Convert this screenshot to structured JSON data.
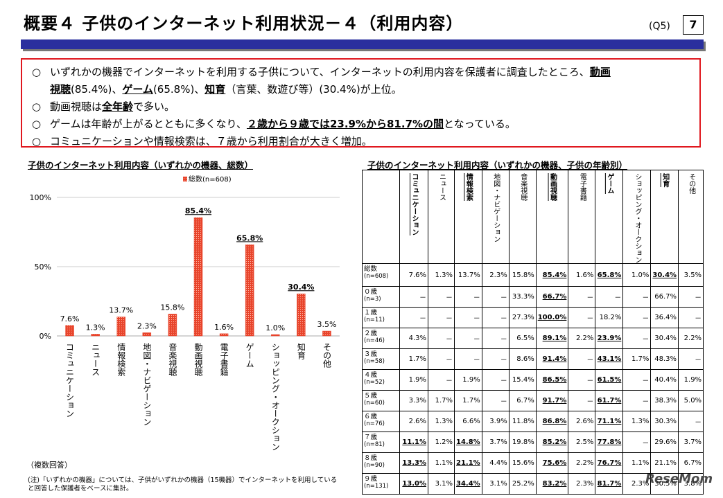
{
  "header": {
    "title": "概要４ 子供のインターネット利用状況－４（利用内容）",
    "question": "(Q5)",
    "page": "7"
  },
  "summary": {
    "bullet": "○",
    "l1a": "いずれかの機器でインターネットを利用する子供について、インターネットの利用内容を保護者に調査したところ、",
    "l1b": "動画",
    "l2a": "視聴",
    "l2b": "(85.4%)、",
    "l2c": "ゲーム",
    "l2d": "(65.8%)、",
    "l2e": "知育",
    "l2f": "（言葉、数遊び等）(30.4%)が上位。",
    "l3a": "動画視聴は",
    "l3b": "全年齢",
    "l3c": "で多い。",
    "l4a": "ゲームは年齢が上がるとともに多くなり、",
    "l4b": "２歳から９歳では23.9%から81.7%の間",
    "l4c": "となっている。",
    "l5": "コミュニケーションや情報検索は、７歳から利用割合が大きく増加。"
  },
  "left_title": "子供のインターネット利用内容（いずれかの機器、総数）",
  "right_title": "子供のインターネット利用内容（いずれかの機器、子供の年齢別）",
  "multi_note": "（複数回答）",
  "footnote": {
    "l1": "(注)「いずれかの機器」については、子供がいずれかの機器（15機器）でインターネットを利用している",
    "l2": "と回答した保護者をベースに集計。"
  },
  "logo": "ReseMom",
  "chart_data": {
    "type": "bar",
    "title": "子供のインターネット利用内容（いずれかの機器、総数）",
    "legend": "総数(n=608)",
    "legend_position": "top-center",
    "categories": [
      "コミュニケーション",
      "ニュース",
      "情報検索",
      "地図・ナビゲーション",
      "音楽視聴",
      "動画視聴",
      "電子書籍",
      "ゲーム",
      "ショッピング・オークション",
      "知育",
      "その他"
    ],
    "values": [
      7.6,
      1.3,
      13.7,
      2.3,
      15.8,
      85.4,
      1.6,
      65.8,
      1.0,
      30.4,
      3.5
    ],
    "labels": [
      "7.6%",
      "1.3%",
      "13.7%",
      "2.3%",
      "15.8%",
      "85.4%",
      "1.6%",
      "65.8%",
      "1.0%",
      "30.4%",
      "3.5%"
    ],
    "highlighted": [
      5,
      7,
      9
    ],
    "yticks": [
      "100%",
      "50%",
      "0%"
    ],
    "ylim": [
      0,
      100
    ],
    "color": "#e8452c"
  },
  "table": {
    "columns": [
      "コミュニケーション",
      "ニュース",
      "情報検索",
      "地図・ナビゲーション",
      "音楽視聴",
      "動画視聴",
      "電子書籍",
      "ゲーム",
      "ショッピング・オークション",
      "知育",
      "その他"
    ],
    "rows": [
      {
        "label": "総数",
        "n": "(n=608)",
        "cells": [
          "7.6%",
          "1.3%",
          "13.7%",
          "2.3%",
          "15.8%",
          "85.4%",
          "1.6%",
          "65.8%",
          "1.0%",
          "30.4%",
          "3.5%"
        ],
        "bold": [
          5,
          7,
          9
        ]
      },
      {
        "label": "０歳",
        "n": "(n=3)",
        "cells": [
          "－",
          "－",
          "－",
          "－",
          "33.3%",
          "66.7%",
          "－",
          "－",
          "－",
          "66.7%",
          "－"
        ],
        "bold": [
          5
        ]
      },
      {
        "label": "１歳",
        "n": "(n=11)",
        "cells": [
          "－",
          "－",
          "－",
          "－",
          "27.3%",
          "100.0%",
          "－",
          "18.2%",
          "－",
          "36.4%",
          "－"
        ],
        "bold": [
          5
        ]
      },
      {
        "label": "２歳",
        "n": "(n=46)",
        "cells": [
          "4.3%",
          "－",
          "－",
          "－",
          "6.5%",
          "89.1%",
          "2.2%",
          "23.9%",
          "－",
          "30.4%",
          "2.2%"
        ],
        "bold": [
          5,
          7
        ]
      },
      {
        "label": "３歳",
        "n": "(n=58)",
        "cells": [
          "1.7%",
          "－",
          "－",
          "－",
          "8.6%",
          "91.4%",
          "－",
          "43.1%",
          "1.7%",
          "48.3%",
          "－"
        ],
        "bold": [
          5,
          7
        ]
      },
      {
        "label": "４歳",
        "n": "(n=52)",
        "cells": [
          "1.9%",
          "－",
          "1.9%",
          "－",
          "15.4%",
          "86.5%",
          "－",
          "61.5%",
          "－",
          "40.4%",
          "1.9%"
        ],
        "bold": [
          5,
          7
        ]
      },
      {
        "label": "５歳",
        "n": "(n=60)",
        "cells": [
          "3.3%",
          "1.7%",
          "1.7%",
          "－",
          "6.7%",
          "91.7%",
          "－",
          "61.7%",
          "－",
          "38.3%",
          "5.0%"
        ],
        "bold": [
          5,
          7
        ]
      },
      {
        "label": "６歳",
        "n": "(n=76)",
        "cells": [
          "2.6%",
          "1.3%",
          "6.6%",
          "3.9%",
          "11.8%",
          "86.8%",
          "2.6%",
          "71.1%",
          "1.3%",
          "30.3%",
          "－"
        ],
        "bold": [
          5,
          7
        ]
      },
      {
        "label": "７歳",
        "n": "(n=81)",
        "cells": [
          "11.1%",
          "1.2%",
          "14.8%",
          "3.7%",
          "19.8%",
          "85.2%",
          "2.5%",
          "77.8%",
          "－",
          "29.6%",
          "3.7%"
        ],
        "bold": [
          0,
          2,
          5,
          7
        ]
      },
      {
        "label": "８歳",
        "n": "(n=90)",
        "cells": [
          "13.3%",
          "1.1%",
          "21.1%",
          "4.4%",
          "15.6%",
          "75.6%",
          "2.2%",
          "76.7%",
          "1.1%",
          "21.1%",
          "6.7%"
        ],
        "bold": [
          0,
          2,
          5,
          7
        ]
      },
      {
        "label": "９歳",
        "n": "(n=131)",
        "cells": [
          "13.0%",
          "3.1%",
          "34.4%",
          "3.1%",
          "25.2%",
          "83.2%",
          "2.3%",
          "81.7%",
          "2.3%",
          "30.5%",
          "3.8%"
        ],
        "bold": [
          0,
          2,
          5,
          7
        ]
      }
    ]
  }
}
